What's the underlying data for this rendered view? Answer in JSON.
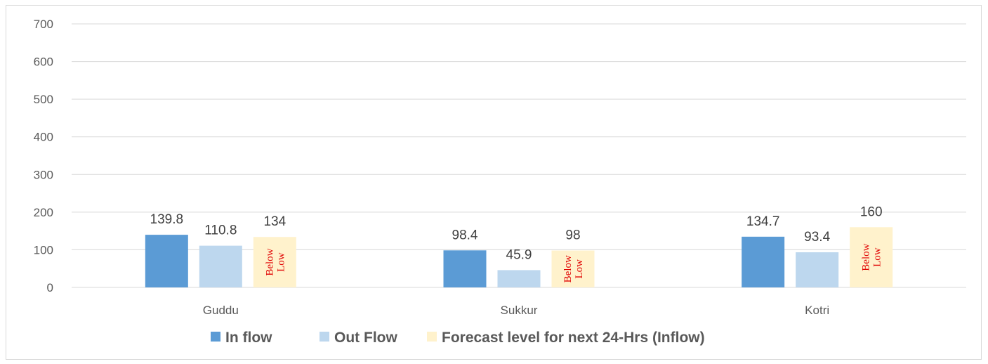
{
  "chart_data": {
    "type": "bar",
    "categories": [
      "Guddu",
      "Sukkur",
      "Kotri"
    ],
    "series": [
      {
        "name": "In flow",
        "color": "#5b9bd5",
        "values": [
          139.8,
          98.4,
          134.7
        ],
        "labels": [
          "139.8",
          "98.4",
          "134.7"
        ]
      },
      {
        "name": "Out Flow",
        "color": "#bdd7ee",
        "values": [
          110.8,
          45.9,
          93.4
        ],
        "labels": [
          "110.8",
          "45.9",
          "93.4"
        ]
      },
      {
        "name": "Forecast level for next 24-Hrs (Inflow)",
        "color": "#fff2cc",
        "values": [
          134,
          98,
          160
        ],
        "labels": [
          "134",
          "98",
          "160"
        ],
        "bar_notes": [
          "Below Low",
          "Below Low",
          "Below Low"
        ]
      }
    ],
    "ylim": [
      0,
      700
    ],
    "yticks": [
      0,
      100,
      200,
      300,
      400,
      500,
      600,
      700
    ],
    "grid": true,
    "legend_position": "bottom",
    "bar_note_color": "#e00000"
  }
}
